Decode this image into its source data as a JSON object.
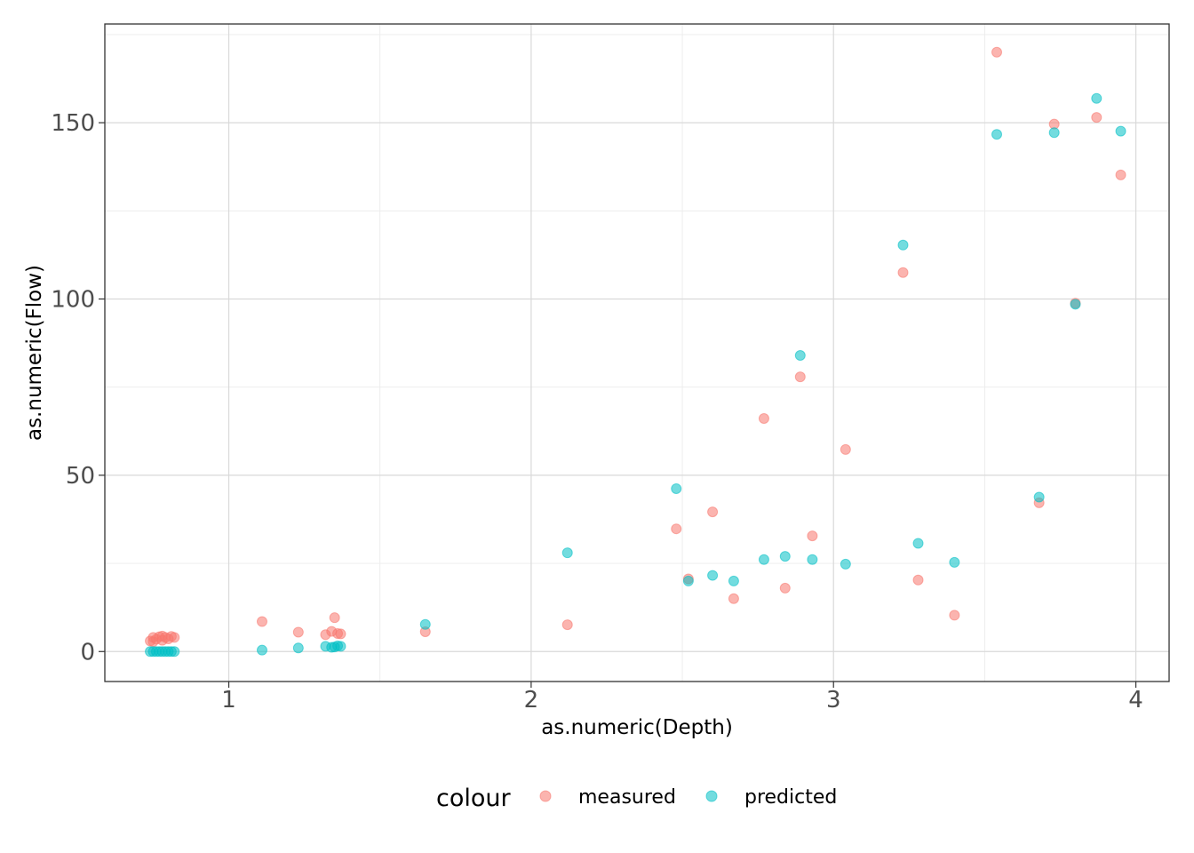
{
  "chart_data": {
    "type": "scatter",
    "xlabel": "as.numeric(Depth)",
    "ylabel": "as.numeric(Flow)",
    "xlim": [
      0.59,
      4.11
    ],
    "ylim": [
      -8.5,
      178
    ],
    "x_ticks": [
      1,
      2,
      3,
      4
    ],
    "y_ticks": [
      0,
      50,
      100,
      150
    ],
    "x_tick_labels": [
      "1",
      "2",
      "3",
      "4"
    ],
    "y_tick_labels": [
      "0",
      "50",
      "100",
      "150"
    ],
    "grid": true,
    "legend_position": "bottom",
    "legend": {
      "title": "colour",
      "entries": [
        "measured",
        "predicted"
      ]
    },
    "series": [
      {
        "name": "measured",
        "color": "#F8766D",
        "points": [
          {
            "x": 0.74,
            "y": 3.0
          },
          {
            "x": 0.75,
            "y": 4.0
          },
          {
            "x": 0.76,
            "y": 3.5
          },
          {
            "x": 0.77,
            "y": 4.2
          },
          {
            "x": 0.78,
            "y": 3.2
          },
          {
            "x": 0.79,
            "y": 4.0
          },
          {
            "x": 0.8,
            "y": 3.6
          },
          {
            "x": 0.81,
            "y": 4.3
          },
          {
            "x": 0.82,
            "y": 4.0
          },
          {
            "x": 0.75,
            "y": 2.8
          },
          {
            "x": 0.78,
            "y": 4.4
          },
          {
            "x": 1.11,
            "y": 8.5
          },
          {
            "x": 1.23,
            "y": 5.5
          },
          {
            "x": 1.32,
            "y": 4.8
          },
          {
            "x": 1.34,
            "y": 5.7
          },
          {
            "x": 1.35,
            "y": 9.6
          },
          {
            "x": 1.36,
            "y": 5.1
          },
          {
            "x": 1.37,
            "y": 5.0
          },
          {
            "x": 1.65,
            "y": 5.6
          },
          {
            "x": 2.12,
            "y": 7.6
          },
          {
            "x": 2.48,
            "y": 34.8
          },
          {
            "x": 2.52,
            "y": 20.6
          },
          {
            "x": 2.6,
            "y": 39.6
          },
          {
            "x": 2.67,
            "y": 15.0
          },
          {
            "x": 2.77,
            "y": 66.1
          },
          {
            "x": 2.84,
            "y": 18.0
          },
          {
            "x": 2.89,
            "y": 77.9
          },
          {
            "x": 2.93,
            "y": 32.8
          },
          {
            "x": 3.04,
            "y": 57.3
          },
          {
            "x": 3.23,
            "y": 107.5
          },
          {
            "x": 3.28,
            "y": 20.3
          },
          {
            "x": 3.4,
            "y": 10.3
          },
          {
            "x": 3.54,
            "y": 170.0
          },
          {
            "x": 3.68,
            "y": 42.2
          },
          {
            "x": 3.73,
            "y": 149.6
          },
          {
            "x": 3.8,
            "y": 98.8
          },
          {
            "x": 3.87,
            "y": 151.5
          },
          {
            "x": 3.95,
            "y": 135.2
          }
        ]
      },
      {
        "name": "predicted",
        "color": "#00BFC4",
        "points": [
          {
            "x": 0.74,
            "y": 0.0
          },
          {
            "x": 0.75,
            "y": 0.0
          },
          {
            "x": 0.76,
            "y": 0.0
          },
          {
            "x": 0.77,
            "y": 0.0
          },
          {
            "x": 0.78,
            "y": 0.0
          },
          {
            "x": 0.79,
            "y": 0.0
          },
          {
            "x": 0.8,
            "y": 0.0
          },
          {
            "x": 0.81,
            "y": 0.0
          },
          {
            "x": 0.82,
            "y": 0.0
          },
          {
            "x": 1.11,
            "y": 0.4
          },
          {
            "x": 1.23,
            "y": 1.0
          },
          {
            "x": 1.32,
            "y": 1.5
          },
          {
            "x": 1.34,
            "y": 1.2
          },
          {
            "x": 1.35,
            "y": 1.3
          },
          {
            "x": 1.36,
            "y": 1.6
          },
          {
            "x": 1.37,
            "y": 1.5
          },
          {
            "x": 1.65,
            "y": 7.7
          },
          {
            "x": 2.12,
            "y": 28.0
          },
          {
            "x": 2.48,
            "y": 46.2
          },
          {
            "x": 2.52,
            "y": 20.0
          },
          {
            "x": 2.6,
            "y": 21.6
          },
          {
            "x": 2.67,
            "y": 20.0
          },
          {
            "x": 2.77,
            "y": 26.1
          },
          {
            "x": 2.84,
            "y": 27.0
          },
          {
            "x": 2.89,
            "y": 84.0
          },
          {
            "x": 2.93,
            "y": 26.1
          },
          {
            "x": 3.04,
            "y": 24.8
          },
          {
            "x": 3.23,
            "y": 115.3
          },
          {
            "x": 3.28,
            "y": 30.7
          },
          {
            "x": 3.4,
            "y": 25.3
          },
          {
            "x": 3.54,
            "y": 146.7
          },
          {
            "x": 3.68,
            "y": 43.8
          },
          {
            "x": 3.73,
            "y": 147.2
          },
          {
            "x": 3.8,
            "y": 98.5
          },
          {
            "x": 3.87,
            "y": 156.9
          },
          {
            "x": 3.95,
            "y": 147.6
          }
        ]
      }
    ]
  }
}
